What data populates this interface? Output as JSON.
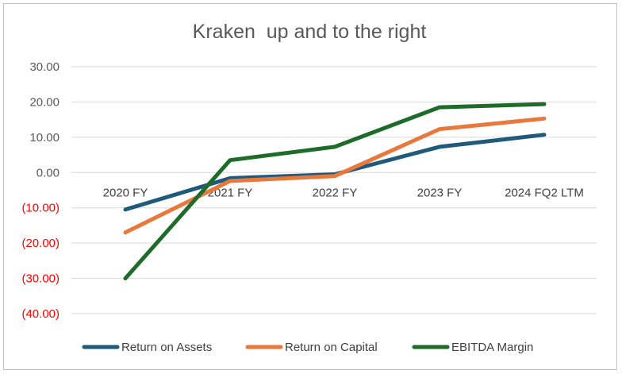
{
  "chart_data": {
    "type": "line",
    "title": "Kraken  up and to the right",
    "categories": [
      "2020 FY",
      "2021 FY",
      "2022 FY",
      "2023 FY",
      "2024 FQ2 LTM"
    ],
    "y_ticks": [
      {
        "value": 30,
        "label": "30.00"
      },
      {
        "value": 20,
        "label": "20.00"
      },
      {
        "value": 10,
        "label": "10.00"
      },
      {
        "value": 0,
        "label": "0.00"
      },
      {
        "value": -10,
        "label": "(10.00)"
      },
      {
        "value": -20,
        "label": "(20.00)"
      },
      {
        "value": -30,
        "label": "(30.00)"
      },
      {
        "value": -40,
        "label": "(40.00)"
      }
    ],
    "ylim": [
      -40,
      30
    ],
    "grid": true,
    "legend_position": "bottom",
    "negative_tick_color": "#ff0000",
    "positive_tick_color": "#595959",
    "series": [
      {
        "name": "Return on Assets",
        "color": "#1f5a7a",
        "values": [
          -10.5,
          -1.6,
          -0.5,
          7.3,
          10.7
        ]
      },
      {
        "name": "Return on Capital",
        "color": "#e8783c",
        "values": [
          -17.0,
          -2.4,
          -1.0,
          12.3,
          15.3
        ]
      },
      {
        "name": "EBITDA Margin",
        "color": "#1e6b2a",
        "values": [
          -30.0,
          3.5,
          7.3,
          18.5,
          19.4
        ]
      }
    ]
  }
}
